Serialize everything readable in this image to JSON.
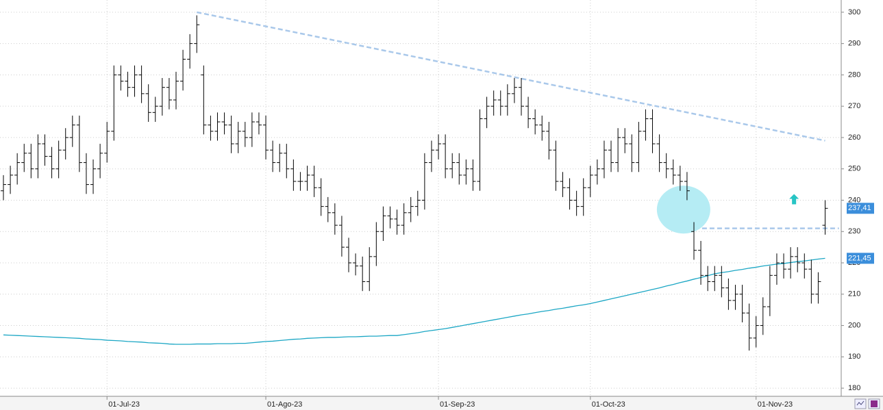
{
  "chart_data": {
    "type": "ohlc",
    "categories": [
      null,
      null,
      null,
      null,
      null,
      null,
      null,
      null,
      null,
      null,
      null,
      null,
      null,
      null,
      null,
      "01-Jul-23",
      null,
      null,
      null,
      null,
      null,
      null,
      null,
      null,
      null,
      null,
      null,
      null,
      null,
      null,
      null,
      null,
      null,
      null,
      null,
      null,
      null,
      null,
      "01-Ago-23",
      null,
      null,
      null,
      null,
      null,
      null,
      null,
      null,
      null,
      null,
      null,
      null,
      null,
      null,
      null,
      null,
      null,
      null,
      null,
      null,
      null,
      null,
      null,
      null,
      "01-Sep-23",
      null,
      null,
      null,
      null,
      null,
      null,
      null,
      null,
      null,
      null,
      null,
      null,
      null,
      null,
      null,
      null,
      null,
      null,
      null,
      null,
      null,
      "01-Oct-23",
      null,
      null,
      null,
      null,
      null,
      null,
      null,
      null,
      null,
      null,
      null,
      null,
      null,
      null,
      null,
      null,
      null,
      null,
      null,
      null,
      null,
      null,
      null,
      "01-Nov-23",
      null,
      null,
      null,
      null,
      null,
      null,
      null,
      null,
      null,
      null
    ],
    "ohlc": {
      "color": "#000000",
      "open": [
        243,
        245,
        248,
        252,
        255,
        250,
        258,
        254,
        250,
        256,
        260,
        264,
        252,
        245,
        250,
        255,
        262,
        280,
        278,
        276,
        280,
        274,
        268,
        270,
        276,
        272,
        278,
        285,
        290,
        280,
        264,
        262,
        265,
        264,
        258,
        262,
        260,
        265,
        264,
        256,
        252,
        255,
        250,
        246,
        246,
        248,
        244,
        238,
        236,
        232,
        225,
        220,
        219,
        214,
        222,
        230,
        235,
        234,
        232,
        236,
        238,
        240,
        252,
        256,
        258,
        250,
        252,
        248,
        250,
        246,
        266,
        270,
        272,
        270,
        274,
        276,
        270,
        266,
        264,
        262,
        256,
        246,
        244,
        240,
        238,
        244,
        248,
        250,
        256,
        252,
        260,
        258,
        252,
        262,
        266,
        258,
        252,
        250,
        248,
        246,
        230,
        224,
        216,
        214,
        216,
        212,
        208,
        210,
        204,
        196,
        200,
        206,
        216,
        220,
        218,
        222,
        220,
        218,
        210,
        232
      ],
      "high": [
        248,
        251,
        255,
        258,
        258,
        261,
        261,
        257,
        259,
        263,
        267,
        267,
        255,
        253,
        258,
        265,
        283,
        283,
        281,
        283,
        283,
        277,
        273,
        279,
        279,
        281,
        288,
        293,
        299,
        283,
        267,
        268,
        268,
        267,
        265,
        265,
        268,
        268,
        267,
        259,
        258,
        258,
        253,
        249,
        251,
        251,
        247,
        241,
        239,
        235,
        228,
        223,
        222,
        225,
        233,
        238,
        238,
        237,
        239,
        241,
        243,
        255,
        259,
        261,
        261,
        255,
        255,
        253,
        253,
        269,
        273,
        275,
        275,
        277,
        279,
        279,
        273,
        269,
        267,
        265,
        259,
        249,
        247,
        243,
        247,
        251,
        253,
        259,
        259,
        263,
        263,
        261,
        265,
        269,
        269,
        261,
        255,
        253,
        251,
        249,
        233,
        227,
        219,
        219,
        219,
        215,
        213,
        213,
        207,
        203,
        209,
        219,
        223,
        223,
        225,
        225,
        223,
        221,
        217,
        240
      ],
      "low": [
        240,
        242,
        245,
        249,
        247,
        247,
        251,
        247,
        247,
        253,
        257,
        249,
        242,
        242,
        247,
        252,
        259,
        275,
        273,
        273,
        271,
        265,
        265,
        267,
        269,
        269,
        275,
        282,
        287,
        261,
        259,
        259,
        261,
        255,
        255,
        257,
        257,
        261,
        253,
        249,
        249,
        247,
        243,
        243,
        243,
        241,
        235,
        233,
        229,
        222,
        217,
        216,
        211,
        211,
        219,
        227,
        231,
        229,
        229,
        233,
        235,
        237,
        249,
        253,
        247,
        247,
        245,
        245,
        243,
        243,
        263,
        267,
        267,
        267,
        271,
        267,
        263,
        261,
        259,
        253,
        243,
        241,
        237,
        235,
        235,
        241,
        245,
        247,
        249,
        249,
        255,
        249,
        249,
        259,
        255,
        249,
        247,
        245,
        243,
        240,
        221,
        213,
        211,
        211,
        209,
        205,
        205,
        201,
        192,
        193,
        197,
        203,
        213,
        215,
        215,
        217,
        215,
        207,
        207,
        229
      ],
      "close": [
        245,
        248,
        252,
        255,
        250,
        258,
        254,
        250,
        256,
        260,
        264,
        252,
        245,
        250,
        255,
        262,
        280,
        278,
        276,
        280,
        274,
        268,
        270,
        276,
        272,
        278,
        285,
        290,
        296,
        264,
        262,
        265,
        264,
        258,
        262,
        260,
        265,
        264,
        256,
        252,
        255,
        250,
        246,
        246,
        248,
        244,
        238,
        236,
        232,
        225,
        220,
        219,
        214,
        222,
        230,
        235,
        234,
        232,
        236,
        238,
        240,
        252,
        256,
        258,
        250,
        252,
        248,
        250,
        246,
        266,
        270,
        272,
        270,
        274,
        276,
        270,
        266,
        264,
        262,
        256,
        246,
        244,
        240,
        238,
        244,
        248,
        250,
        256,
        252,
        260,
        258,
        252,
        262,
        266,
        258,
        252,
        250,
        248,
        246,
        243,
        224,
        216,
        214,
        216,
        212,
        208,
        210,
        204,
        196,
        200,
        206,
        216,
        220,
        218,
        222,
        220,
        218,
        210,
        214,
        237.41
      ],
      "last_label": "237,41",
      "label_color": "#3b8edb"
    },
    "moving_average": {
      "color": "#1aa6c4",
      "last_label": "221,45",
      "label_color": "#3b8edb",
      "values": [
        197.0,
        196.9,
        196.8,
        196.7,
        196.6,
        196.5,
        196.4,
        196.3,
        196.2,
        196.1,
        196.0,
        195.9,
        195.7,
        195.6,
        195.5,
        195.3,
        195.2,
        195.1,
        194.9,
        194.8,
        194.7,
        194.5,
        194.4,
        194.3,
        194.1,
        194.0,
        194.0,
        194.0,
        194.1,
        194.1,
        194.1,
        194.2,
        194.2,
        194.2,
        194.3,
        194.3,
        194.5,
        194.7,
        194.9,
        195.0,
        195.2,
        195.4,
        195.6,
        195.7,
        195.9,
        196.0,
        196.1,
        196.2,
        196.2,
        196.3,
        196.4,
        196.4,
        196.5,
        196.6,
        196.6,
        196.7,
        196.8,
        196.8,
        197.1,
        197.4,
        197.7,
        198.1,
        198.4,
        198.7,
        199.0,
        199.4,
        199.8,
        200.2,
        200.6,
        201.0,
        201.4,
        201.8,
        202.2,
        202.6,
        203.0,
        203.4,
        203.7,
        204.1,
        204.5,
        204.8,
        205.2,
        205.5,
        205.9,
        206.3,
        206.6,
        207.0,
        207.5,
        208.0,
        208.5,
        209.0,
        209.5,
        210.0,
        210.5,
        211.0,
        211.5,
        212.0,
        212.6,
        213.1,
        213.7,
        214.2,
        214.8,
        215.3,
        215.9,
        216.5,
        216.9,
        217.2,
        217.6,
        217.9,
        218.3,
        218.6,
        219.0,
        219.3,
        219.6,
        219.8,
        220.1,
        220.4,
        220.6,
        220.9,
        221.2,
        221.45
      ]
    },
    "annotations": [
      {
        "type": "trendline",
        "color": "#a9c8ea",
        "x": [
          28,
          119
        ],
        "y": [
          300,
          259
        ]
      },
      {
        "type": "trendline",
        "color": "#a9c8ea",
        "x": [
          99,
          121
        ],
        "y": [
          231,
          231
        ]
      },
      {
        "type": "circle",
        "color": "#b5ecf4",
        "x": 98.5,
        "y": 237
      },
      {
        "type": "arrow",
        "color": "#27c4c4",
        "x": 114.5,
        "y": 240
      }
    ],
    "ylim": [
      177.4,
      303.9
    ],
    "yticks": [
      180,
      190,
      200,
      210,
      220,
      230,
      240,
      250,
      260,
      270,
      280,
      290,
      300
    ],
    "grid": true
  }
}
